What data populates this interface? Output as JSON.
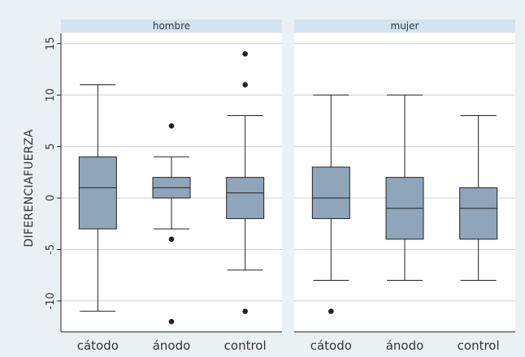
{
  "chart_data": {
    "type": "box",
    "ylabel": "DIFERENCIAFUERZA",
    "xlabel": "",
    "ylim": [
      -13,
      16
    ],
    "yticks": [
      -10,
      -5,
      0,
      5,
      10,
      15
    ],
    "grid": true,
    "categories": [
      "cátodo",
      "ánodo",
      "control"
    ],
    "panels": [
      {
        "label": "hombre",
        "boxes": [
          {
            "category": "cátodo",
            "whisker_low": -11,
            "q1": -3,
            "median": 1,
            "q3": 4,
            "whisker_high": 11,
            "outliers": []
          },
          {
            "category": "ánodo",
            "whisker_low": -3,
            "q1": 0,
            "median": 1,
            "q3": 2,
            "whisker_high": 4,
            "outliers": [
              -4,
              -12,
              7
            ]
          },
          {
            "category": "control",
            "whisker_low": -7,
            "q1": -2,
            "median": 0.5,
            "q3": 2,
            "whisker_high": 8,
            "outliers": [
              -11,
              11,
              14
            ]
          }
        ]
      },
      {
        "label": "mujer",
        "boxes": [
          {
            "category": "cátodo",
            "whisker_low": -8,
            "q1": -2,
            "median": 0,
            "q3": 3,
            "whisker_high": 10,
            "outliers": [
              -11
            ]
          },
          {
            "category": "ánodo",
            "whisker_low": -8,
            "q1": -4,
            "median": -1,
            "q3": 2,
            "whisker_high": 10,
            "outliers": []
          },
          {
            "category": "control",
            "whisker_low": -8,
            "q1": -4,
            "median": -1,
            "q3": 1,
            "whisker_high": 8,
            "outliers": []
          }
        ]
      }
    ]
  },
  "colors": {
    "background": "#eaf1f5",
    "plot_area": "#ffffff",
    "box_fill": "#8ea5ba",
    "strip_fill": "#d3e4ef",
    "grid": "#c9d3da",
    "line": "#222222"
  }
}
